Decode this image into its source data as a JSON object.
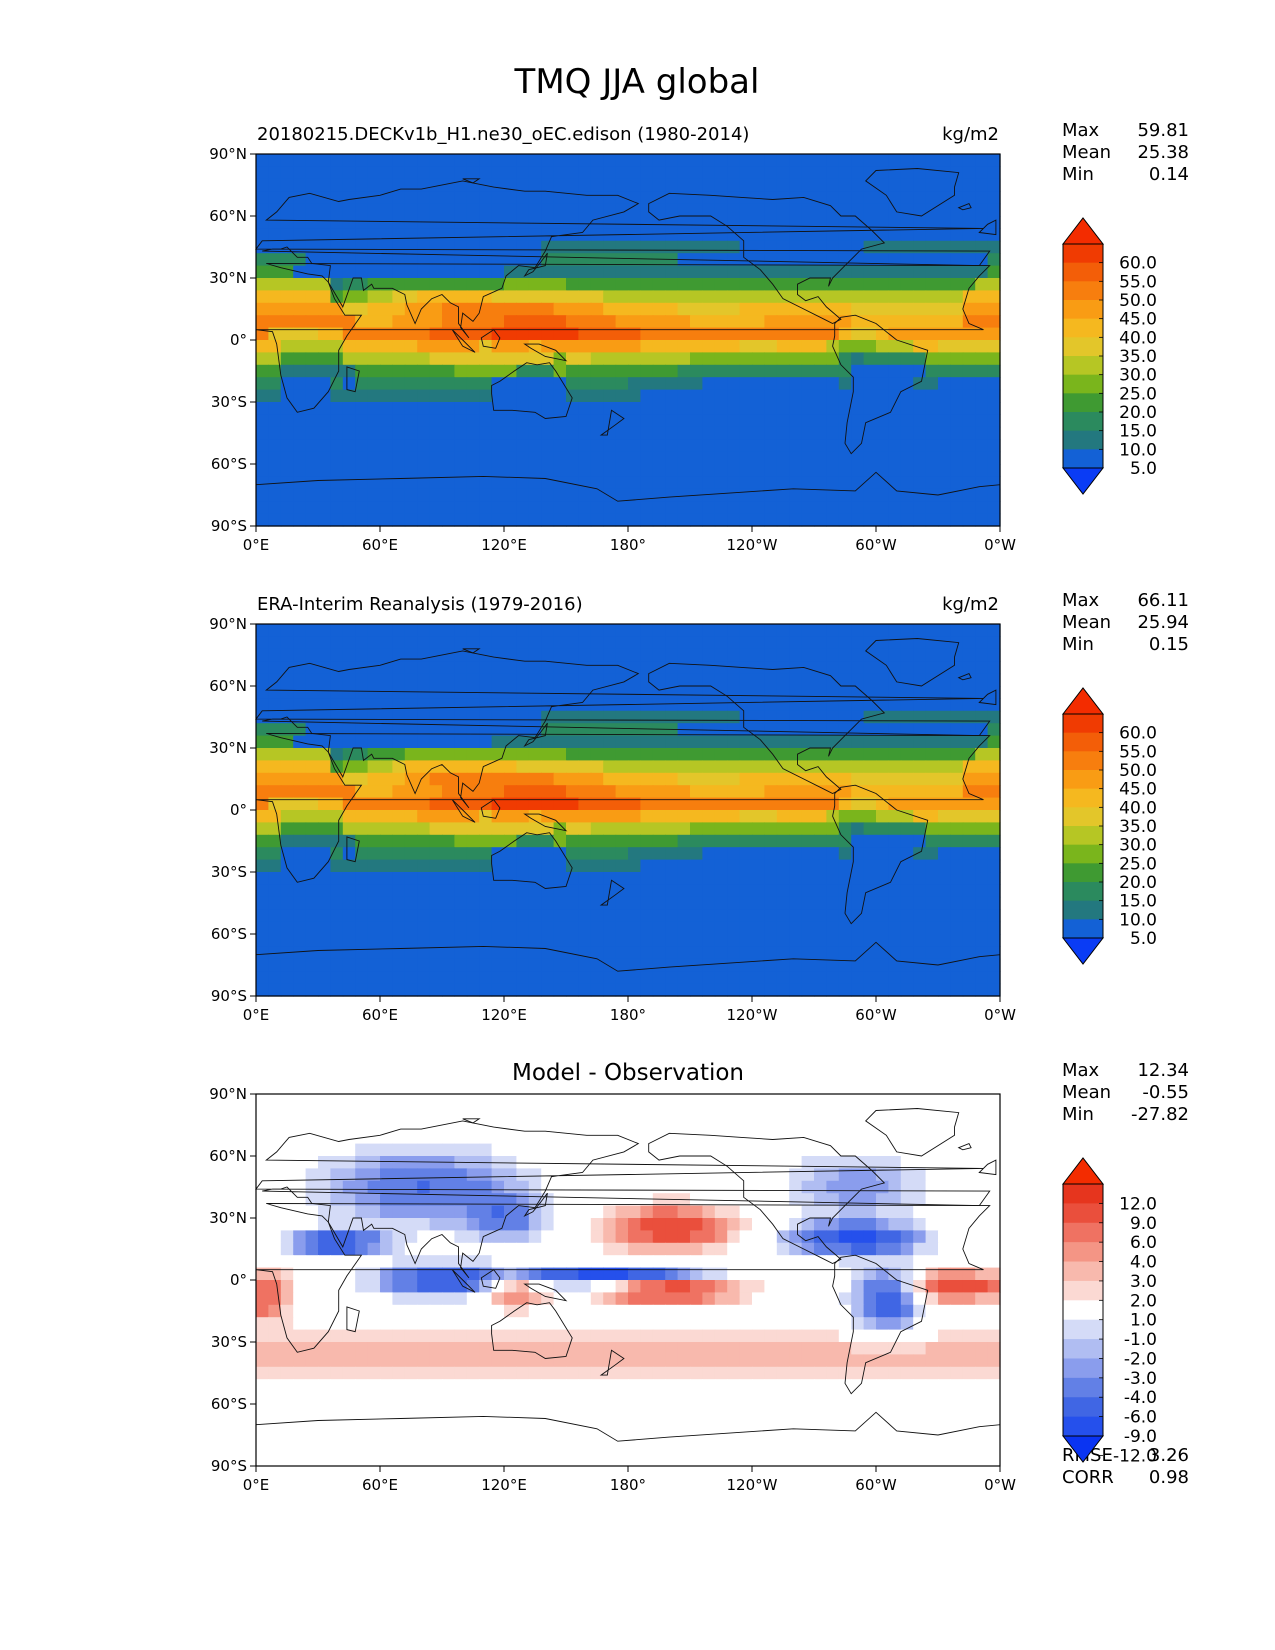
{
  "figure": {
    "title": "TMQ JJA global"
  },
  "chart_data": [
    {
      "type": "heatmap",
      "title_left": "20180215.DECKv1b_H1.ne30_oEC.edison (1980-2014)",
      "title_center": "",
      "units": "kg/m2",
      "x_ticks": [
        "0°E",
        "60°E",
        "120°E",
        "180°",
        "120°W",
        "60°W",
        "0°W"
      ],
      "y_ticks": [
        "90°N",
        "60°N",
        "30°N",
        "0°",
        "30°S",
        "60°S",
        "90°S"
      ],
      "xlim": [
        0,
        360
      ],
      "ylim": [
        -90,
        90
      ],
      "stats": [
        {
          "label": "Max",
          "value": "59.81"
        },
        {
          "label": "Mean",
          "value": "25.38"
        },
        {
          "label": "Min",
          "value": "0.14"
        }
      ],
      "colorbar": {
        "extend": "both",
        "levels": [
          0,
          5,
          10,
          15,
          20,
          25,
          30,
          35,
          40,
          45,
          50,
          55,
          60,
          65
        ],
        "tick_labels": [
          "60.0",
          "55.0",
          "50.0",
          "45.0",
          "40.0",
          "35.0",
          "30.0",
          "25.0",
          "20.0",
          "15.0",
          "10.0",
          "5.0"
        ],
        "colors": [
          "#0a3cf5",
          "#1361d6",
          "#23787f",
          "#2b8a5e",
          "#3f9a32",
          "#7ab51c",
          "#b6c624",
          "#e3c62a",
          "#f5b81f",
          "#f99c14",
          "#f77e0e",
          "#f35e08",
          "#f03b02",
          "#f32c00"
        ]
      }
    },
    {
      "type": "heatmap",
      "title_left": "ERA-Interim Reanalysis (1979-2016)",
      "title_center": "",
      "units": "kg/m2",
      "x_ticks": [
        "0°E",
        "60°E",
        "120°E",
        "180°",
        "120°W",
        "60°W",
        "0°W"
      ],
      "y_ticks": [
        "90°N",
        "60°N",
        "30°N",
        "0°",
        "30°S",
        "60°S",
        "90°S"
      ],
      "xlim": [
        0,
        360
      ],
      "ylim": [
        -90,
        90
      ],
      "stats": [
        {
          "label": "Max",
          "value": "66.11"
        },
        {
          "label": "Mean",
          "value": "25.94"
        },
        {
          "label": "Min",
          "value": "0.15"
        }
      ],
      "colorbar": {
        "extend": "both",
        "levels": [
          0,
          5,
          10,
          15,
          20,
          25,
          30,
          35,
          40,
          45,
          50,
          55,
          60,
          65
        ],
        "tick_labels": [
          "60.0",
          "55.0",
          "50.0",
          "45.0",
          "40.0",
          "35.0",
          "30.0",
          "25.0",
          "20.0",
          "15.0",
          "10.0",
          "5.0"
        ],
        "colors": [
          "#0a3cf5",
          "#1361d6",
          "#23787f",
          "#2b8a5e",
          "#3f9a32",
          "#7ab51c",
          "#b6c624",
          "#e3c62a",
          "#f5b81f",
          "#f99c14",
          "#f77e0e",
          "#f35e08",
          "#f03b02",
          "#f32c00"
        ]
      }
    },
    {
      "type": "heatmap",
      "title_left": "",
      "title_center": "Model - Observation",
      "units": "",
      "x_ticks": [
        "0°E",
        "60°E",
        "120°E",
        "180°",
        "120°W",
        "60°W",
        "0°W"
      ],
      "y_ticks": [
        "90°N",
        "60°N",
        "30°N",
        "0°",
        "30°S",
        "60°S",
        "90°S"
      ],
      "xlim": [
        0,
        360
      ],
      "ylim": [
        -90,
        90
      ],
      "stats": [
        {
          "label": "Max",
          "value": "12.34"
        },
        {
          "label": "Mean",
          "value": "-0.55"
        },
        {
          "label": "Min",
          "value": "-27.82"
        }
      ],
      "extra_stats": [
        {
          "label": "RMSE",
          "value": "3.26"
        },
        {
          "label": "CORR",
          "value": "0.98"
        }
      ],
      "colorbar": {
        "extend": "both",
        "levels": [
          -12,
          -9,
          -6,
          -4,
          -3,
          -2,
          -1,
          1,
          2,
          3,
          4,
          6,
          9,
          12
        ],
        "tick_labels": [
          "12.0",
          "9.0",
          "6.0",
          "4.0",
          "3.0",
          "2.0",
          "1.0",
          "-1.0",
          "-2.0",
          "-3.0",
          "-4.0",
          "-6.0",
          "-9.0",
          "-12.0"
        ],
        "colors": [
          "#0a34f2",
          "#2550ec",
          "#4066e4",
          "#6280e6",
          "#8a9ded",
          "#b0bdf2",
          "#d4dbf7",
          "#ffffff",
          "#fbd9d3",
          "#f8b9ad",
          "#f49585",
          "#ef7262",
          "#ea4f3c",
          "#e6351e",
          "#f32c00"
        ]
      }
    }
  ]
}
